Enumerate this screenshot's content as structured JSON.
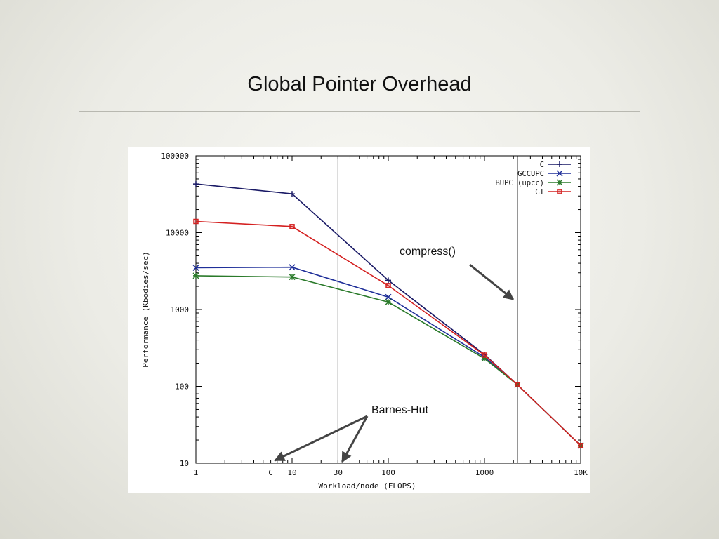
{
  "slide": {
    "title": "Global Pointer Overhead"
  },
  "chart_data": {
    "type": "line",
    "title": "",
    "xlabel": "Workload/node (FLOPS)",
    "ylabel": "Performance (Kbodies/sec)",
    "xscale": "log",
    "yscale": "log",
    "xlim": [
      1,
      10000
    ],
    "ylim": [
      10,
      100000
    ],
    "grid": false,
    "legend_position": "top-right",
    "x_ticks": [
      {
        "value": 1,
        "label": "1"
      },
      {
        "value": 10,
        "label": "10"
      },
      {
        "value": 100,
        "label": "100"
      },
      {
        "value": 1000,
        "label": "1000"
      },
      {
        "value": 10000,
        "label": "10K"
      }
    ],
    "y_ticks": [
      {
        "value": 10,
        "label": "10"
      },
      {
        "value": 100,
        "label": "100"
      },
      {
        "value": 1000,
        "label": "1000"
      },
      {
        "value": 10000,
        "label": "10000"
      },
      {
        "value": 100000,
        "label": "100000"
      }
    ],
    "extra_x_labels": [
      {
        "value": 6,
        "label": "C"
      },
      {
        "value": 30,
        "label": "30"
      }
    ],
    "vertical_lines": [
      30,
      2200
    ],
    "series": [
      {
        "name": "C",
        "color": "#1a1a66",
        "marker": "plus",
        "x": [
          1,
          10,
          100,
          1000,
          2200,
          10000
        ],
        "y": [
          43000,
          32000,
          2400,
          260,
          105,
          17
        ]
      },
      {
        "name": "GCCUPC",
        "color": "#1f2f99",
        "marker": "cross",
        "x": [
          1,
          10,
          100,
          1000,
          2200,
          10000
        ],
        "y": [
          3500,
          3550,
          1450,
          240,
          105,
          17
        ]
      },
      {
        "name": "BUPC (upcc)",
        "color": "#2a7a2a",
        "marker": "star",
        "x": [
          1,
          10,
          100,
          1000,
          2200,
          10000
        ],
        "y": [
          2750,
          2650,
          1250,
          230,
          105,
          17
        ]
      },
      {
        "name": "GT",
        "color": "#d42020",
        "marker": "square",
        "x": [
          1,
          10,
          100,
          1000,
          2200,
          10000
        ],
        "y": [
          14000,
          12000,
          2050,
          255,
          105,
          17
        ]
      }
    ],
    "annotations": [
      {
        "text": "compress()",
        "arrow_to": {
          "x": 2200,
          "y": 1350
        }
      },
      {
        "text": "Barnes-Hut",
        "arrows_to": [
          {
            "x": 6,
            "y": 10
          },
          {
            "x": 30,
            "y": 10
          }
        ]
      }
    ]
  }
}
